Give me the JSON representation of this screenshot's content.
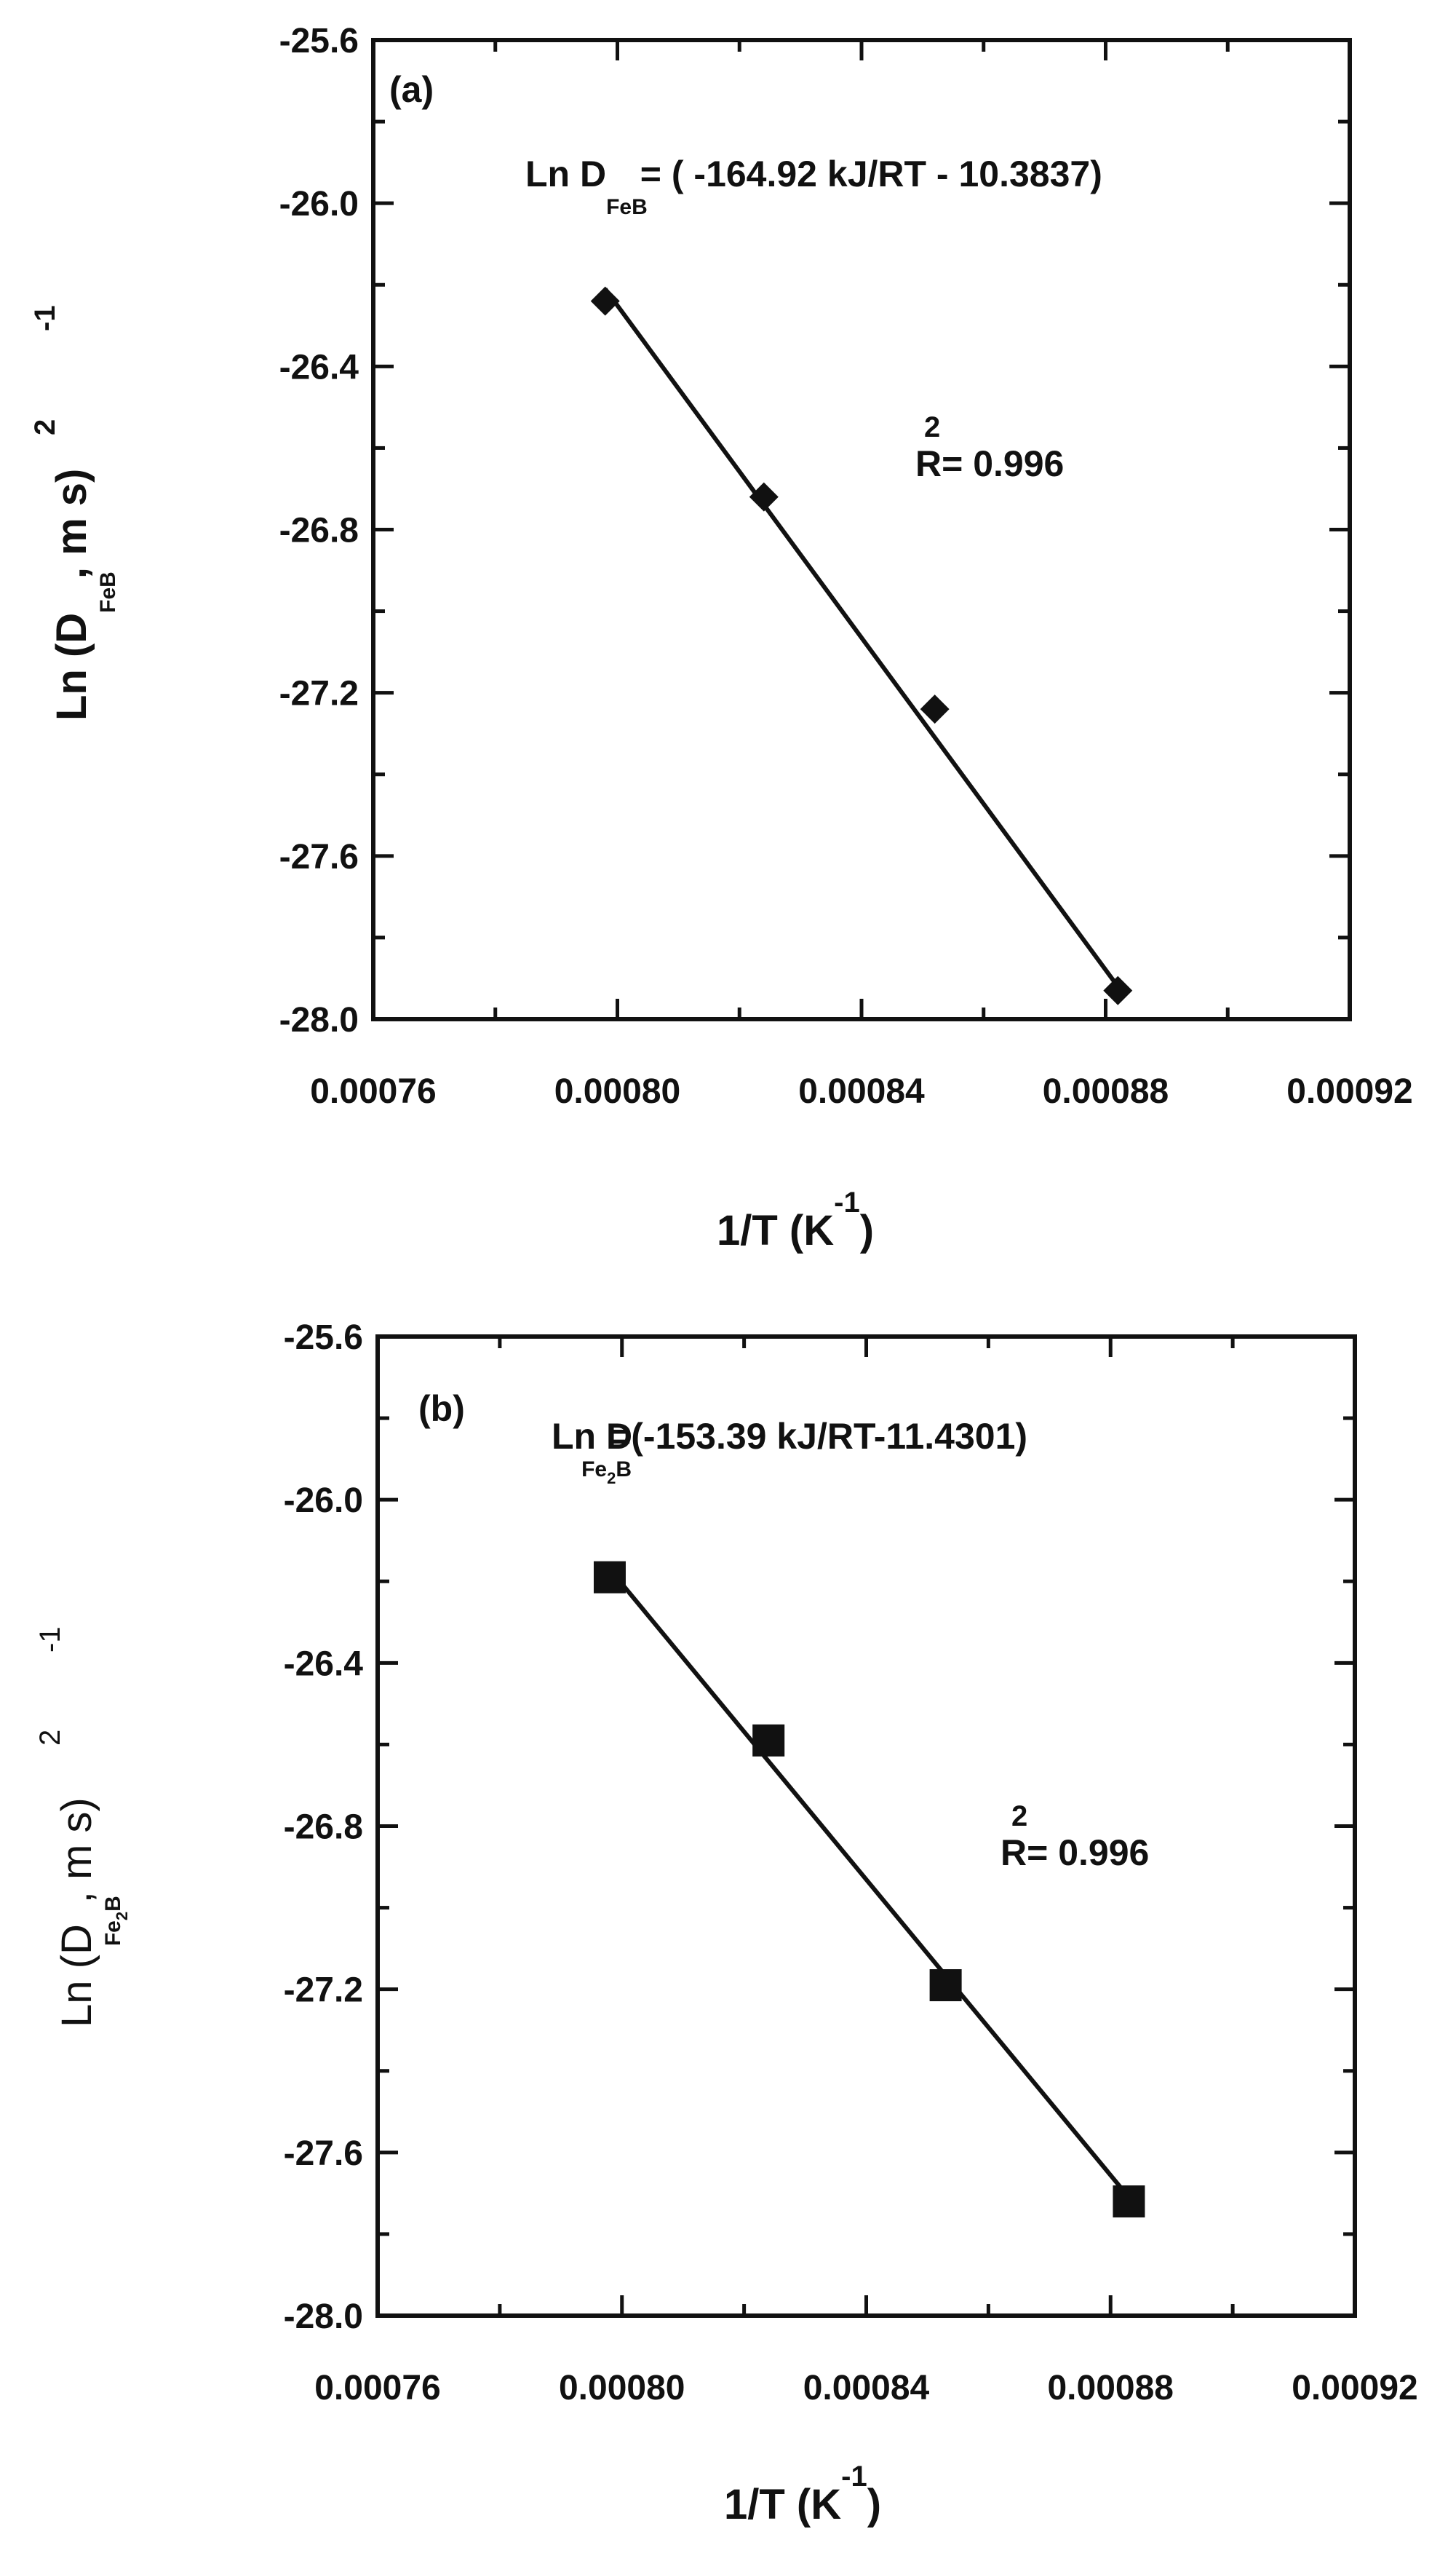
{
  "chart_data": [
    {
      "type": "scatter",
      "panel_label": "(a)",
      "x": [
        0.000798,
        0.000824,
        0.000852,
        0.000882
      ],
      "y": [
        -26.24,
        -26.72,
        -27.24,
        -27.93
      ],
      "fit_line": {
        "x": [
          0.000798,
          0.000882
        ],
        "y": [
          -26.21,
          -27.92
        ]
      },
      "marker": "diamond",
      "xlim": [
        0.00076,
        0.00092
      ],
      "ylim": [
        -28.0,
        -25.6
      ],
      "x_ticks": [
        "0.00076",
        "0.00080",
        "0.00084",
        "0.00088",
        "0.00092"
      ],
      "y_ticks": [
        "-25.6",
        "-26.0",
        "-26.4",
        "-26.8",
        "-27.2",
        "-27.6",
        "-28.0"
      ],
      "xlabel": {
        "main": "1/T (K",
        "sup": "-1",
        "close": ")"
      },
      "ylabel": {
        "main": "Ln (D",
        "sub": "FeB",
        "mid": ",  m s",
        "sup1": "2",
        "sup2": "-1",
        "close": ")"
      },
      "equation": {
        "prefix": "Ln D",
        "sub": "FeB",
        "rest": "= ( -164.92 kJ/RT - 10.3837)"
      },
      "r2": {
        "text": "R= 0.996",
        "sup": "2"
      }
    },
    {
      "type": "scatter",
      "panel_label": "(b)",
      "x": [
        0.000798,
        0.000824,
        0.000853,
        0.000883
      ],
      "y": [
        -26.19,
        -26.59,
        -27.19,
        -27.72
      ],
      "fit_line": {
        "x": [
          0.000798,
          0.000883
        ],
        "y": [
          -26.17,
          -27.71
        ]
      },
      "marker": "square",
      "xlim": [
        0.00076,
        0.00092
      ],
      "ylim": [
        -28.0,
        -25.6
      ],
      "x_ticks": [
        "0.00076",
        "0.00080",
        "0.00084",
        "0.00088",
        "0.00092"
      ],
      "y_ticks": [
        "-25.6",
        "-26.0",
        "-26.4",
        "-26.8",
        "-27.2",
        "-27.6",
        "-28.0"
      ],
      "xlabel": {
        "main": "1/T (K",
        "sup": "-1",
        "close": ")"
      },
      "ylabel": {
        "main": "Ln (D",
        "sub": "Fe",
        "sub2": "2",
        "subB": "B",
        "mid": ", m s",
        "sup1": "2",
        "sup2": "-1",
        "close": ")"
      },
      "equation": {
        "prefix": "Ln D",
        "sub": "Fe",
        "sub2": "2",
        "subB": "B",
        "rest": "=(-153.39 kJ/RT-11.4301)"
      },
      "r2": {
        "text": "R= 0.996",
        "sup": "2"
      }
    }
  ]
}
